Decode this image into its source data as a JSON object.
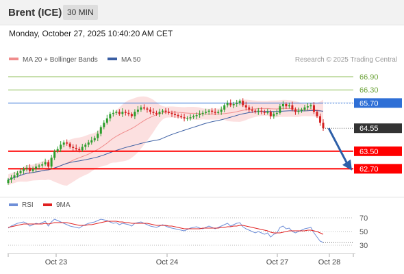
{
  "header": {
    "title": "Brent (ICE)",
    "timeframe": "30 MIN"
  },
  "datetime": "Monday, October 27, 2025 10:40:20 AM CET",
  "legend": {
    "items": [
      {
        "label": "MA 20 + Bollinger Bands",
        "color": "#f08c8c"
      },
      {
        "label": "MA 50",
        "color": "#3a5ea3"
      }
    ],
    "credit": "Research © 2025 Trading Central"
  },
  "rsi_legend": {
    "items": [
      {
        "label": "RSI",
        "color": "#6f8fd8"
      },
      {
        "label": "9MA",
        "color": "#e02020"
      }
    ]
  },
  "colors": {
    "up": "#2c9e2c",
    "down": "#d42020",
    "resistance": "#8fbf5a",
    "pivot": "#2e6fd6",
    "support": "#ff0000"
  },
  "chart_data": [
    {
      "type": "candlestick",
      "ylim": [
        61.9,
        67.4
      ],
      "x_ticks": [
        "Oct 23",
        "Oct 24",
        "Oct 27",
        "Oct 28"
      ],
      "levels": [
        {
          "label": "66.90",
          "value": 66.9,
          "kind": "resistance"
        },
        {
          "label": "66.30",
          "value": 66.3,
          "kind": "resistance"
        },
        {
          "label": "65.70",
          "value": 65.7,
          "kind": "pivot"
        },
        {
          "label": "64.55",
          "value": 64.55,
          "kind": "last"
        },
        {
          "label": "63.50",
          "value": 63.5,
          "kind": "support"
        },
        {
          "label": "62.70",
          "value": 62.7,
          "kind": "support"
        }
      ],
      "close": [
        62.2,
        62.3,
        62.4,
        62.5,
        62.6,
        62.7,
        62.75,
        62.6,
        62.7,
        62.8,
        62.85,
        62.9,
        63.0,
        62.8,
        63.2,
        63.5,
        63.6,
        63.8,
        63.9,
        63.85,
        63.7,
        63.65,
        63.6,
        63.55,
        63.7,
        63.8,
        63.9,
        64.0,
        64.1,
        64.3,
        64.6,
        64.8,
        65.0,
        65.2,
        65.25,
        65.3,
        65.2,
        65.3,
        65.25,
        65.2,
        65.1,
        65.3,
        65.4,
        65.5,
        65.45,
        65.4,
        65.3,
        65.25,
        65.2,
        65.3,
        65.35,
        65.3,
        65.25,
        65.2,
        65.15,
        65.1,
        65.05,
        65.0,
        65.0,
        65.05,
        65.1,
        65.15,
        65.2,
        65.25,
        65.3,
        65.35,
        65.3,
        65.25,
        65.3,
        65.4,
        65.6,
        65.7,
        65.6,
        65.65,
        65.7,
        65.8,
        65.6,
        65.5,
        65.4,
        65.35,
        65.3,
        65.35,
        65.3,
        65.25,
        65.3,
        65.1,
        65.2,
        65.25,
        65.55,
        65.65,
        65.55,
        65.6,
        65.4,
        65.3,
        65.35,
        65.4,
        65.5,
        65.55,
        65.6,
        65.3,
        65.1,
        64.8,
        64.55
      ],
      "rsi": {
        "ylim": [
          20,
          80
        ],
        "levels": [
          {
            "label": "70",
            "value": 70
          },
          {
            "label": "50",
            "value": 50
          },
          {
            "label": "30",
            "value": 30
          }
        ],
        "rsi_values": [
          55,
          58,
          60,
          62,
          63,
          64,
          62,
          58,
          60,
          62,
          61,
          63,
          65,
          58,
          64,
          68,
          66,
          64,
          62,
          60,
          58,
          57,
          56,
          55,
          58,
          60,
          62,
          63,
          64,
          66,
          68,
          67,
          66,
          64,
          62,
          63,
          60,
          62,
          61,
          60,
          58,
          62,
          63,
          64,
          62,
          60,
          58,
          57,
          56,
          58,
          60,
          58,
          56,
          55,
          54,
          53,
          52,
          51,
          53,
          55,
          56,
          57,
          55,
          54,
          56,
          58,
          56,
          54,
          56,
          58,
          60,
          62,
          58,
          60,
          62,
          63,
          57,
          54,
          52,
          50,
          48,
          50,
          48,
          46,
          48,
          42,
          46,
          48,
          56,
          58,
          54,
          55,
          50,
          48,
          50,
          52,
          54,
          55,
          56,
          48,
          42,
          36,
          34
        ],
        "ma_values": [
          56,
          57,
          58,
          59,
          60,
          61,
          61,
          61,
          61,
          61,
          61,
          61,
          62,
          61,
          62,
          63,
          63,
          63,
          63,
          63,
          62,
          61,
          60,
          59,
          59,
          59,
          60,
          60,
          61,
          62,
          63,
          64,
          65,
          65,
          65,
          65,
          64,
          64,
          63,
          63,
          62,
          62,
          62,
          62,
          62,
          62,
          61,
          60,
          59,
          59,
          59,
          59,
          58,
          58,
          57,
          56,
          55,
          54,
          54,
          54,
          54,
          54,
          54,
          55,
          55,
          55,
          55,
          55,
          55,
          56,
          56,
          57,
          57,
          58,
          58,
          59,
          59,
          58,
          57,
          56,
          55,
          54,
          53,
          52,
          51,
          49,
          48,
          48,
          48,
          49,
          50,
          51,
          51,
          51,
          51,
          51,
          51,
          52,
          52,
          51,
          50,
          48,
          46
        ]
      }
    }
  ]
}
